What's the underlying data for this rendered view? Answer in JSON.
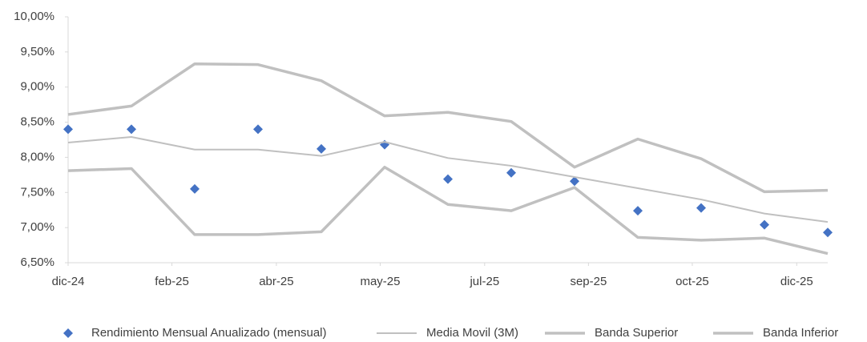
{
  "chart_data": {
    "type": "line",
    "x": [
      0,
      1,
      2,
      3,
      4,
      5,
      6,
      7,
      8,
      9,
      10,
      11,
      12
    ],
    "xlim": [
      0,
      12
    ],
    "xticks": [
      {
        "value": 0,
        "label": "dic-24"
      },
      {
        "value": 1.64,
        "label": "feb-25"
      },
      {
        "value": 3.29,
        "label": "abr-25"
      },
      {
        "value": 4.93,
        "label": "may-25"
      },
      {
        "value": 6.58,
        "label": "jul-25"
      },
      {
        "value": 8.22,
        "label": "sep-25"
      },
      {
        "value": 9.86,
        "label": "oct-25"
      },
      {
        "value": 11.51,
        "label": "dic-25"
      }
    ],
    "ylim": [
      6.5,
      10
    ],
    "yticks": [
      {
        "value": 6.5,
        "label": "6,50%"
      },
      {
        "value": 7,
        "label": "7,00%"
      },
      {
        "value": 7.5,
        "label": "7,50%"
      },
      {
        "value": 8,
        "label": "8,00%"
      },
      {
        "value": 8.5,
        "label": "8,50%"
      },
      {
        "value": 9,
        "label": "9,00%"
      },
      {
        "value": 9.5,
        "label": "9,50%"
      },
      {
        "value": 10,
        "label": "10,00%"
      }
    ],
    "legend": "bottom",
    "series": [
      {
        "name": "Rendimiento Mensual Anualizado (mensual)",
        "type": "scatter",
        "color": "#4472c4",
        "values": [
          8.4,
          8.4,
          7.55,
          8.4,
          8.12,
          8.18,
          7.69,
          7.78,
          7.66,
          7.24,
          7.28,
          7.04,
          6.93
        ]
      },
      {
        "name": "Media Movil (3M)",
        "type": "line",
        "color": "#c0c0c0",
        "width": 2,
        "values": [
          8.21,
          8.29,
          8.11,
          8.11,
          8.02,
          8.22,
          7.99,
          7.88,
          7.72,
          7.56,
          7.4,
          7.2,
          7.08
        ]
      },
      {
        "name": "Banda Superior",
        "type": "line",
        "color": "#c0c0c0",
        "width": 3.5,
        "values": [
          8.61,
          8.73,
          9.33,
          9.32,
          9.09,
          8.59,
          8.64,
          8.51,
          7.86,
          8.26,
          7.98,
          7.51,
          7.53
        ]
      },
      {
        "name": "Banda Inferior",
        "type": "line",
        "color": "#c0c0c0",
        "width": 3.5,
        "values": [
          7.81,
          7.84,
          6.9,
          6.9,
          6.94,
          7.86,
          7.33,
          7.24,
          7.57,
          6.86,
          6.82,
          6.85,
          6.63
        ]
      }
    ]
  }
}
